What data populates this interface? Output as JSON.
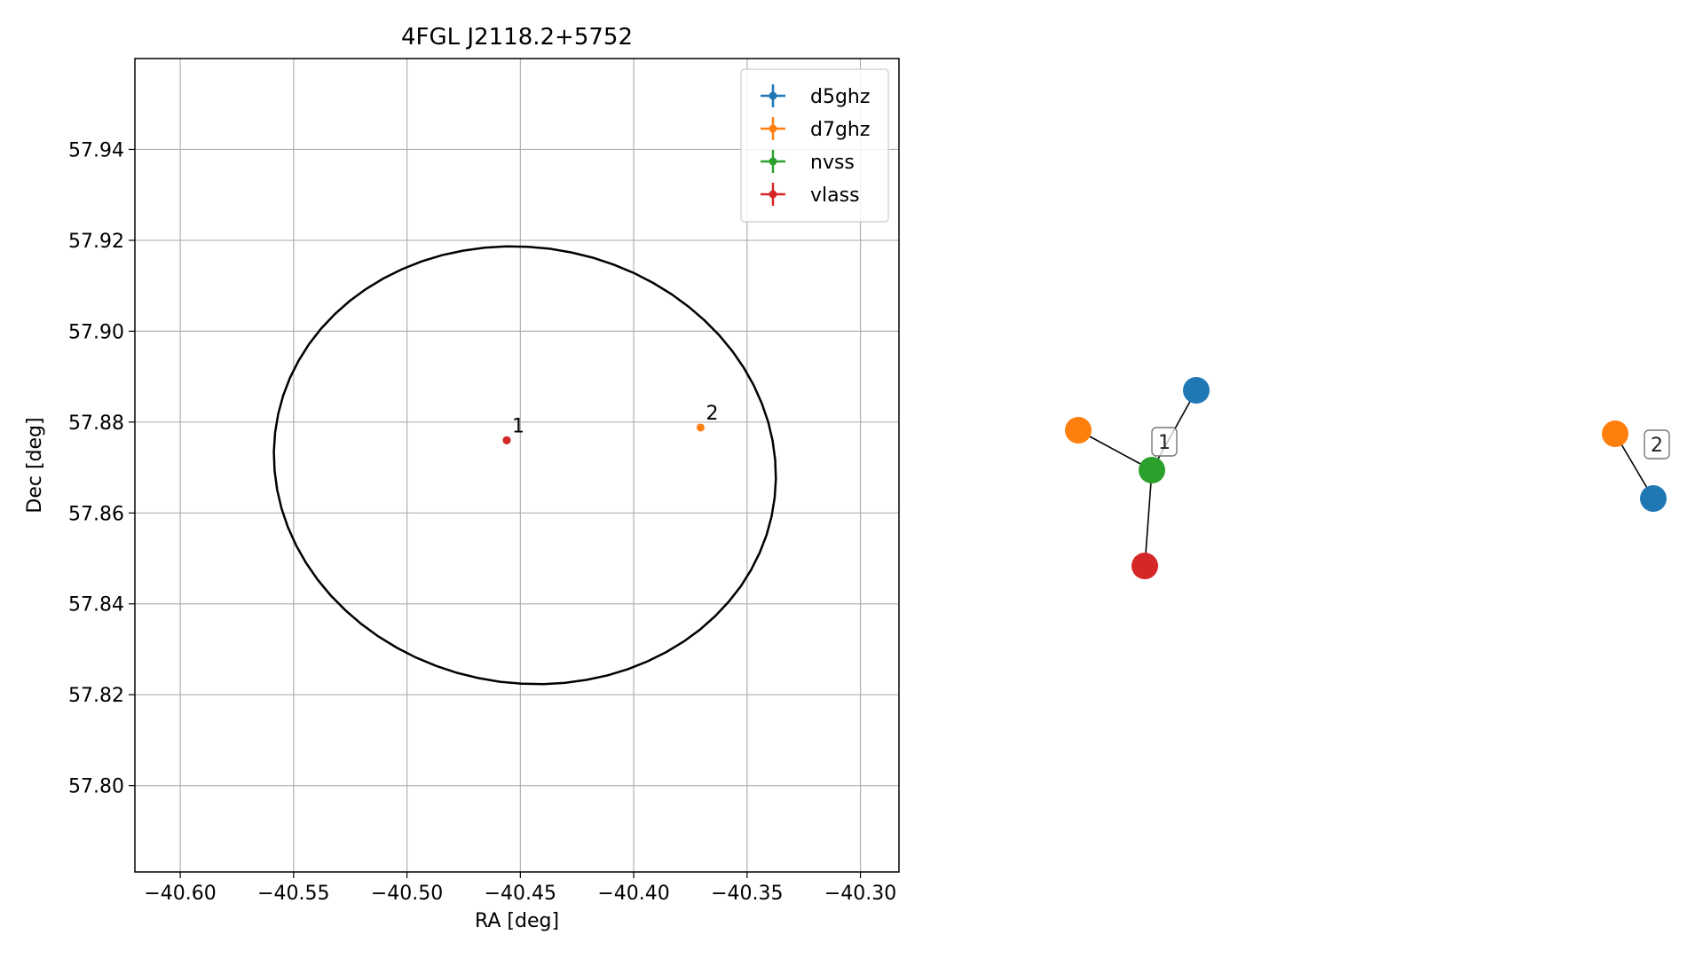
{
  "chart_data": [
    {
      "type": "scatter",
      "title": "4FGL J2118.2+5752",
      "xlabel": "RA [deg]",
      "ylabel": "Dec [deg]",
      "xlim": [
        -40.62,
        -40.283
      ],
      "ylim": [
        57.781,
        57.96
      ],
      "xticks": [
        -40.6,
        -40.55,
        -40.5,
        -40.45,
        -40.4,
        -40.35,
        -40.3
      ],
      "xtick_labels": [
        "−40.60",
        "−40.55",
        "−40.50",
        "−40.45",
        "−40.40",
        "−40.35",
        "−40.30"
      ],
      "yticks": [
        57.8,
        57.82,
        57.84,
        57.86,
        57.88,
        57.9,
        57.92,
        57.94
      ],
      "ytick_labels": [
        "57.80",
        "57.82",
        "57.84",
        "57.86",
        "57.88",
        "57.90",
        "57.92",
        "57.94"
      ],
      "grid": true,
      "legend_position": "top-right",
      "series": [
        {
          "name": "d5ghz",
          "color": "#1f77b4",
          "points": [
            {
              "x": -40.456,
              "y": 57.876
            }
          ]
        },
        {
          "name": "d7ghz",
          "color": "#ff7f0e",
          "points": [
            {
              "x": -40.3705,
              "y": 57.8788
            }
          ]
        },
        {
          "name": "nvss",
          "color": "#2ca02c",
          "points": [
            {
              "x": -40.456,
              "y": 57.876
            }
          ]
        },
        {
          "name": "vlass",
          "color": "#d62728",
          "points": [
            {
              "x": -40.456,
              "y": 57.876
            }
          ]
        }
      ],
      "annotations": [
        {
          "text": "1",
          "x": -40.456,
          "y": 57.876
        },
        {
          "text": "2",
          "x": -40.3705,
          "y": 57.8788
        }
      ],
      "ellipse": {
        "center_x": -40.448,
        "center_y": 57.8705,
        "semi_x": 0.111,
        "semi_y": 0.048,
        "angle_deg": -7,
        "color": "#000000"
      }
    },
    {
      "type": "network",
      "groups": [
        {
          "label": "1",
          "nodes": [
            {
              "id": "d5ghz",
              "color": "#1f77b4"
            },
            {
              "id": "d7ghz",
              "color": "#ff7f0e"
            },
            {
              "id": "nvss",
              "color": "#2ca02c"
            },
            {
              "id": "vlass",
              "color": "#d62728"
            }
          ],
          "edges": [
            [
              "nvss",
              "d5ghz"
            ],
            [
              "nvss",
              "d7ghz"
            ],
            [
              "nvss",
              "vlass"
            ]
          ]
        },
        {
          "label": "2",
          "nodes": [
            {
              "id": "d7ghz",
              "color": "#ff7f0e"
            },
            {
              "id": "d5ghz",
              "color": "#1f77b4"
            }
          ],
          "edges": [
            [
              "d7ghz",
              "d5ghz"
            ]
          ]
        }
      ]
    }
  ]
}
